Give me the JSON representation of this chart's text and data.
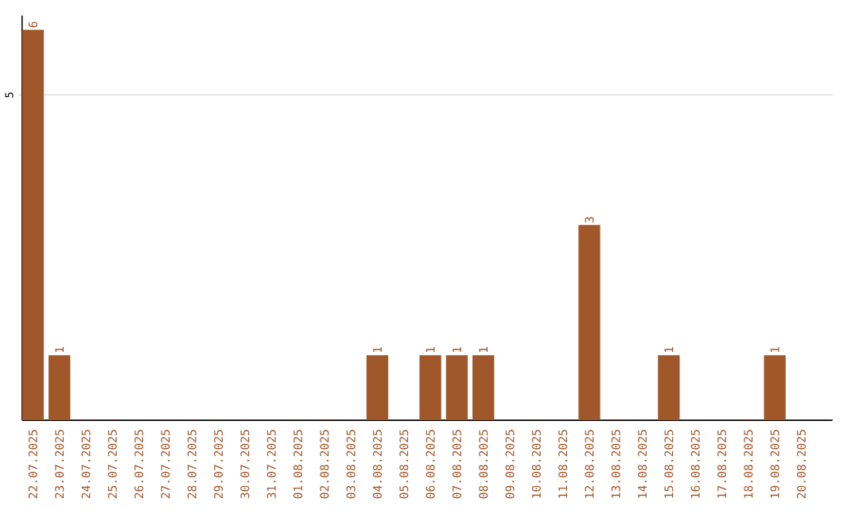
{
  "chart_data": {
    "type": "bar",
    "categories": [
      "22.07.2025",
      "23.07.2025",
      "24.07.2025",
      "25.07.2025",
      "26.07.2025",
      "27.07.2025",
      "28.07.2025",
      "29.07.2025",
      "30.07.2025",
      "31.07.2025",
      "01.08.2025",
      "02.08.2025",
      "03.08.2025",
      "04.08.2025",
      "05.08.2025",
      "06.08.2025",
      "07.08.2025",
      "08.08.2025",
      "09.08.2025",
      "10.08.2025",
      "11.08.2025",
      "12.08.2025",
      "13.08.2025",
      "14.08.2025",
      "15.08.2025",
      "16.08.2025",
      "17.08.2025",
      "18.08.2025",
      "19.08.2025",
      "20.08.2025"
    ],
    "values": [
      6,
      1,
      0,
      0,
      0,
      0,
      0,
      0,
      0,
      0,
      0,
      0,
      0,
      1,
      0,
      1,
      1,
      1,
      0,
      0,
      0,
      3,
      0,
      0,
      1,
      0,
      0,
      0,
      1,
      0
    ],
    "value_labels": [
      "6",
      "1",
      null,
      null,
      null,
      null,
      null,
      null,
      null,
      null,
      null,
      null,
      null,
      "1",
      null,
      "1",
      "1",
      "1",
      null,
      null,
      null,
      "3",
      null,
      null,
      "1",
      null,
      null,
      null,
      "1",
      null
    ],
    "color": "#a0572a",
    "ylim": [
      0,
      6.22
    ],
    "yticks": [
      5
    ],
    "grid": "y"
  }
}
